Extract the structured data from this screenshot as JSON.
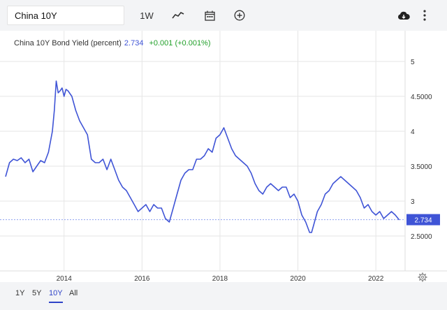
{
  "toolbar": {
    "symbol_value": "China 10Y",
    "interval_label": "1W"
  },
  "legend": {
    "series_name": "China 10Y Bond Yield (percent)",
    "last_value": "2.734",
    "change": "+0.001 (+0.001%)"
  },
  "range_buttons": [
    "1Y",
    "5Y",
    "10Y",
    "All"
  ],
  "active_range": "10Y",
  "colors": {
    "line": "#3f54d6",
    "change_positive": "#22a02a",
    "grid": "#e6e6e6",
    "toolbar_bg": "#f3f4f6",
    "price_tag": "#3f54d6"
  },
  "chart_data": {
    "type": "line",
    "xlabel": "",
    "ylabel": "",
    "xlim": [
      2012.5,
      2022.75
    ],
    "ylim": [
      2.0,
      5.5
    ],
    "x_ticks": [
      2014,
      2016,
      2018,
      2020,
      2022
    ],
    "x_tick_labels": [
      "2014",
      "2016",
      "2018",
      "2020",
      "2022"
    ],
    "y_ticks": [
      2.5,
      3,
      3.5,
      4,
      4.5,
      5
    ],
    "y_tick_labels": [
      "2.5000",
      "3",
      "3.5000",
      "4",
      "4.5000",
      "5"
    ],
    "grid": true,
    "last_price_line": 2.734,
    "last_price_label": "2.734",
    "series": [
      {
        "x": [
          2012.5,
          2012.6,
          2012.7,
          2012.8,
          2012.9,
          2013.0,
          2013.1,
          2013.2,
          2013.3,
          2013.4,
          2013.5,
          2013.6,
          2013.65,
          2013.7,
          2013.75,
          2013.8,
          2013.85,
          2013.9,
          2013.95,
          2014.0,
          2014.05,
          2014.1,
          2014.2,
          2014.3,
          2014.4,
          2014.5,
          2014.6,
          2014.7,
          2014.8,
          2014.9,
          2015.0,
          2015.1,
          2015.2,
          2015.3,
          2015.4,
          2015.5,
          2015.6,
          2015.7,
          2015.8,
          2015.9,
          2016.0,
          2016.1,
          2016.2,
          2016.3,
          2016.4,
          2016.5,
          2016.6,
          2016.7,
          2016.8,
          2016.9,
          2017.0,
          2017.1,
          2017.2,
          2017.3,
          2017.4,
          2017.5,
          2017.6,
          2017.7,
          2017.8,
          2017.9,
          2018.0,
          2018.05,
          2018.1,
          2018.2,
          2018.3,
          2018.4,
          2018.5,
          2018.6,
          2018.7,
          2018.8,
          2018.9,
          2019.0,
          2019.1,
          2019.2,
          2019.3,
          2019.4,
          2019.5,
          2019.6,
          2019.7,
          2019.8,
          2019.9,
          2020.0,
          2020.1,
          2020.2,
          2020.3,
          2020.35,
          2020.4,
          2020.5,
          2020.6,
          2020.7,
          2020.8,
          2020.9,
          2021.0,
          2021.1,
          2021.2,
          2021.3,
          2021.4,
          2021.5,
          2021.6,
          2021.7,
          2021.8,
          2021.9,
          2022.0,
          2022.1,
          2022.2,
          2022.3,
          2022.4,
          2022.5,
          2022.6
        ],
        "y": [
          3.35,
          3.55,
          3.6,
          3.58,
          3.62,
          3.55,
          3.6,
          3.42,
          3.5,
          3.58,
          3.55,
          3.7,
          3.85,
          4.0,
          4.3,
          4.72,
          4.55,
          4.58,
          4.62,
          4.5,
          4.6,
          4.58,
          4.5,
          4.3,
          4.15,
          4.05,
          3.95,
          3.6,
          3.55,
          3.55,
          3.6,
          3.45,
          3.6,
          3.45,
          3.3,
          3.2,
          3.15,
          3.05,
          2.95,
          2.85,
          2.9,
          2.95,
          2.85,
          2.95,
          2.9,
          2.9,
          2.75,
          2.7,
          2.9,
          3.1,
          3.3,
          3.4,
          3.45,
          3.45,
          3.6,
          3.6,
          3.65,
          3.75,
          3.7,
          3.9,
          3.95,
          4.0,
          4.05,
          3.9,
          3.75,
          3.65,
          3.6,
          3.55,
          3.5,
          3.4,
          3.25,
          3.15,
          3.1,
          3.2,
          3.25,
          3.2,
          3.15,
          3.2,
          3.2,
          3.05,
          3.1,
          3.0,
          2.8,
          2.7,
          2.55,
          2.55,
          2.65,
          2.85,
          2.95,
          3.1,
          3.15,
          3.25,
          3.3,
          3.35,
          3.3,
          3.25,
          3.2,
          3.15,
          3.05,
          2.9,
          2.95,
          2.85,
          2.8,
          2.85,
          2.75,
          2.8,
          2.85,
          2.8,
          2.73
        ]
      }
    ]
  }
}
